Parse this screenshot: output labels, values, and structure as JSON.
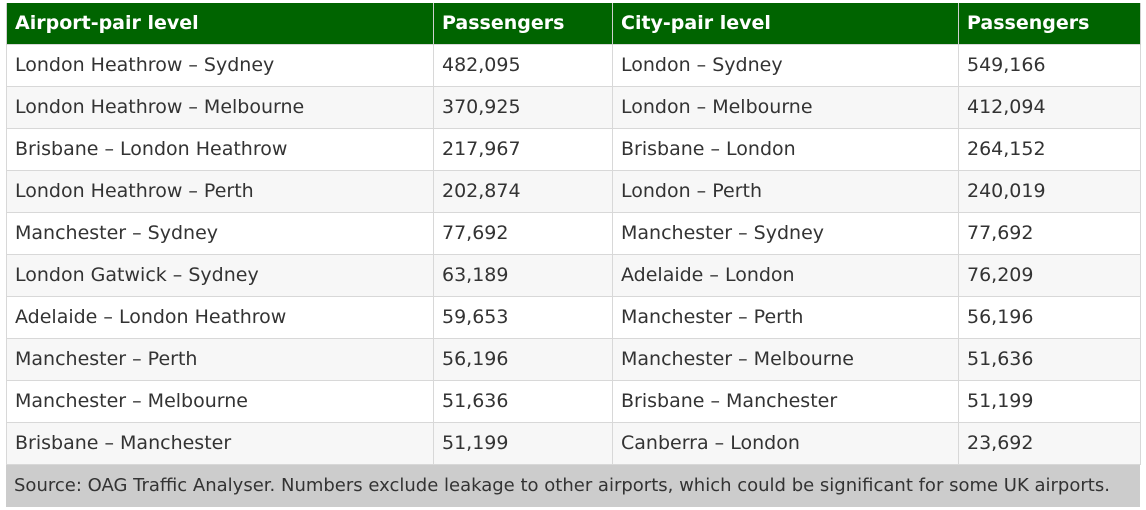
{
  "table": {
    "headers": [
      "Airport-pair level",
      "Passengers",
      "City-pair level",
      "Passengers"
    ],
    "rows": [
      [
        "London Heathrow – Sydney",
        "482,095",
        "London – Sydney",
        "549,166"
      ],
      [
        "London Heathrow – Melbourne",
        "370,925",
        "London – Melbourne",
        "412,094"
      ],
      [
        "Brisbane – London Heathrow",
        "217,967",
        "Brisbane – London",
        "264,152"
      ],
      [
        "London Heathrow – Perth",
        "202,874",
        "London – Perth",
        "240,019"
      ],
      [
        "Manchester – Sydney",
        "77,692",
        "Manchester – Sydney",
        "77,692"
      ],
      [
        "London Gatwick – Sydney",
        "63,189",
        "Adelaide – London",
        "76,209"
      ],
      [
        "Adelaide – London Heathrow",
        "59,653",
        "Manchester – Perth",
        "56,196"
      ],
      [
        "Manchester – Perth",
        "56,196",
        "Manchester – Melbourne",
        "51,636"
      ],
      [
        "Manchester – Melbourne",
        "51,636",
        "Brisbane – Manchester",
        "51,199"
      ],
      [
        "Brisbane – Manchester",
        "51,199",
        "Canberra – London",
        "23,692"
      ]
    ]
  },
  "source_note": "Source: OAG Traffic Analyser. Numbers exclude leakage to other airports, which could be significant for some UK airports.",
  "colors": {
    "header_bg": "#006400",
    "header_text": "#ffffff",
    "footer_bg": "#cccccc"
  }
}
